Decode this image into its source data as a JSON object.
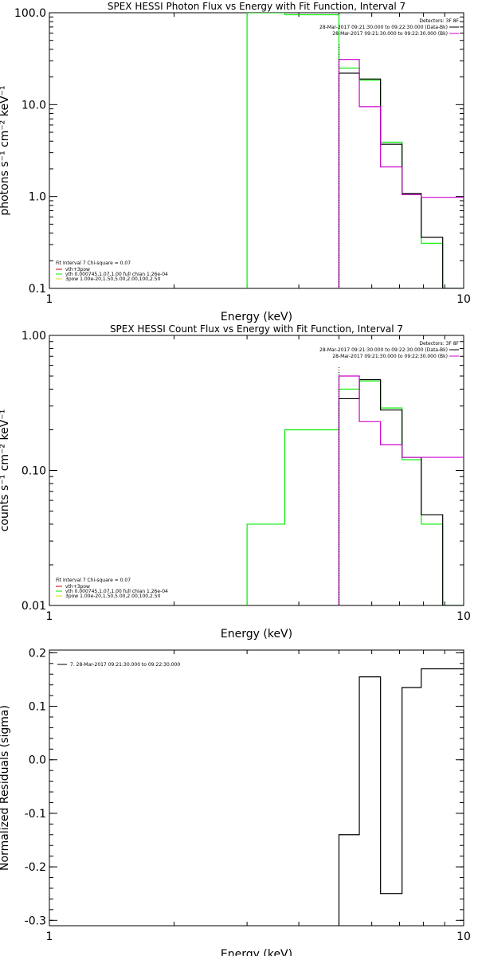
{
  "colors": {
    "data": "#000000",
    "model_red": "#cc0000",
    "model_green": "#00ee00",
    "model_yellow": "#dddd00",
    "magenta": "#cc00cc",
    "boundary": "#000000"
  },
  "chart_data": [
    {
      "id": "photon",
      "type": "line",
      "title": "SPEX HESSI Photon Flux vs Energy with Fit Function, Interval 7",
      "xlabel": "Energy (keV)",
      "ylabel": "photons s⁻¹ cm⁻² keV⁻¹",
      "xscale": "log",
      "yscale": "log",
      "xlim": [
        1,
        10
      ],
      "ylim": [
        0.1,
        100
      ],
      "xticks": [
        {
          "v": 1,
          "label": "1"
        },
        {
          "v": 10,
          "label": "10"
        }
      ],
      "yticks": [
        {
          "v": 0.1,
          "label": "0.1"
        },
        {
          "v": 1,
          "label": "1.0"
        },
        {
          "v": 10,
          "label": "10.0"
        },
        {
          "v": 100,
          "label": "100.0"
        }
      ],
      "boundary_x": 5,
      "legend_right": {
        "header": "Detectors: 3F 8F",
        "lines": [
          {
            "text": "28-Mar-2017 09:21:30.000 to 09:22:30.000 (Data-Bk)",
            "color": "#000000"
          },
          {
            "text": "28-Mar-2017 09:21:30.000 to 09:22:30.000 (Bk)",
            "color": "#cc00cc"
          }
        ]
      },
      "legend_left": {
        "header": "Fit Interval  7   Chi-square = 0.07",
        "lines": [
          {
            "text": "vth+3pow",
            "color": "#cc0000"
          },
          {
            "text": "vth 0.000745,1.07,1.00   full chian 1.26e-04",
            "color": "#00ee00"
          },
          {
            "text": "3pow 1.00e-20,1.50,5.00,2.00,100,2.50",
            "color": "#dddd00"
          }
        ]
      },
      "series": [
        {
          "role": "model-green",
          "color": "#00ee00",
          "edges": [
            3,
            3.7,
            5,
            5.6,
            6.3,
            7.1,
            7.9,
            8.9,
            10
          ],
          "values": [
            100,
            95,
            25,
            18.5,
            3.9,
            1.05,
            0.31,
            0.07
          ]
        },
        {
          "role": "data",
          "color": "#000000",
          "edges": [
            5,
            5.6,
            6.3,
            7.1,
            7.9,
            8.9,
            10
          ],
          "values": [
            22,
            19,
            3.7,
            1.08,
            0.36,
            0.07
          ]
        },
        {
          "role": "background",
          "color": "#cc00cc",
          "edges": [
            5,
            5.6,
            6.3,
            7.1,
            7.9,
            8.9,
            10
          ],
          "values": [
            31,
            9.5,
            2.1,
            1.05,
            0.98,
            0.98
          ]
        }
      ]
    },
    {
      "id": "count",
      "type": "line",
      "title": "SPEX HESSI Count Flux vs Energy with Fit Function, Interval 7",
      "xlabel": "Energy (keV)",
      "ylabel": "counts s⁻¹ cm⁻² keV⁻¹",
      "xscale": "log",
      "yscale": "log",
      "xlim": [
        1,
        10
      ],
      "ylim": [
        0.01,
        1
      ],
      "xticks": [
        {
          "v": 1,
          "label": "1"
        },
        {
          "v": 10,
          "label": "10"
        }
      ],
      "yticks": [
        {
          "v": 0.01,
          "label": "0.01"
        },
        {
          "v": 0.1,
          "label": "0.10"
        },
        {
          "v": 1,
          "label": "1.00"
        }
      ],
      "boundary_x": 5,
      "legend_right": {
        "header": "Detectors: 3F 8F",
        "lines": [
          {
            "text": "28-Mar-2017 09:21:30.000 to 09:22:30.000 (Data-Bk)",
            "color": "#000000"
          },
          {
            "text": "28-Mar-2017 09:21:30.000 to 09:22:30.000 (Bk)",
            "color": "#cc00cc"
          }
        ]
      },
      "legend_left": {
        "header": "Fit Interval  7   Chi-square = 0.07",
        "lines": [
          {
            "text": "vth+3pow",
            "color": "#cc0000"
          },
          {
            "text": "vth 0.000745,1.07,1.00   full chian 1.26e-04",
            "color": "#00ee00"
          },
          {
            "text": "3pow 1.00e-20,1.50,5.00,2.00,100,2.50",
            "color": "#dddd00"
          }
        ]
      },
      "series": [
        {
          "role": "model-green",
          "color": "#00ee00",
          "edges": [
            3,
            3.7,
            5,
            5.6,
            6.3,
            7.1,
            7.9,
            8.9,
            10
          ],
          "values": [
            0.04,
            0.2,
            0.4,
            0.46,
            0.29,
            0.12,
            0.04,
            0.005
          ]
        },
        {
          "role": "data",
          "color": "#000000",
          "edges": [
            5,
            5.6,
            6.3,
            7.1,
            7.9,
            8.9,
            10
          ],
          "values": [
            0.34,
            0.47,
            0.28,
            0.125,
            0.047,
            0.005
          ]
        },
        {
          "role": "background",
          "color": "#cc00cc",
          "edges": [
            5,
            5.6,
            6.3,
            7.1,
            7.9,
            8.9,
            10
          ],
          "values": [
            0.5,
            0.23,
            0.155,
            0.125,
            0.125,
            0.125
          ]
        }
      ]
    },
    {
      "id": "residuals",
      "type": "line",
      "title": "",
      "xlabel": "Energy (keV)",
      "ylabel": "Normalized Residuals (sigma)",
      "xscale": "log",
      "yscale": "linear",
      "xlim": [
        1,
        10
      ],
      "ylim": [
        -0.31,
        0.205
      ],
      "xticks": [
        {
          "v": 1,
          "label": "1"
        },
        {
          "v": 10,
          "label": "10"
        }
      ],
      "yticks": [
        {
          "v": -0.3,
          "label": "-0.3"
        },
        {
          "v": -0.2,
          "label": "-0.2"
        },
        {
          "v": -0.1,
          "label": "-0.1"
        },
        {
          "v": 0,
          "label": "0.0"
        },
        {
          "v": 0.1,
          "label": "0.1"
        },
        {
          "v": 0.2,
          "label": "0.2"
        }
      ],
      "legend_right": null,
      "legend_left": null,
      "legend_top": {
        "lines": [
          {
            "text": "7. 28-Mar-2017 09:21:30.000 to 09:22:30.000",
            "color": "#000000"
          }
        ]
      },
      "series": [
        {
          "role": "residual",
          "color": "#000000",
          "edges": [
            5,
            5.6,
            6.3,
            7.1,
            7.9,
            8.9,
            10
          ],
          "values": [
            -0.14,
            0.155,
            -0.25,
            0.135,
            0.17,
            0.17
          ]
        }
      ]
    }
  ]
}
